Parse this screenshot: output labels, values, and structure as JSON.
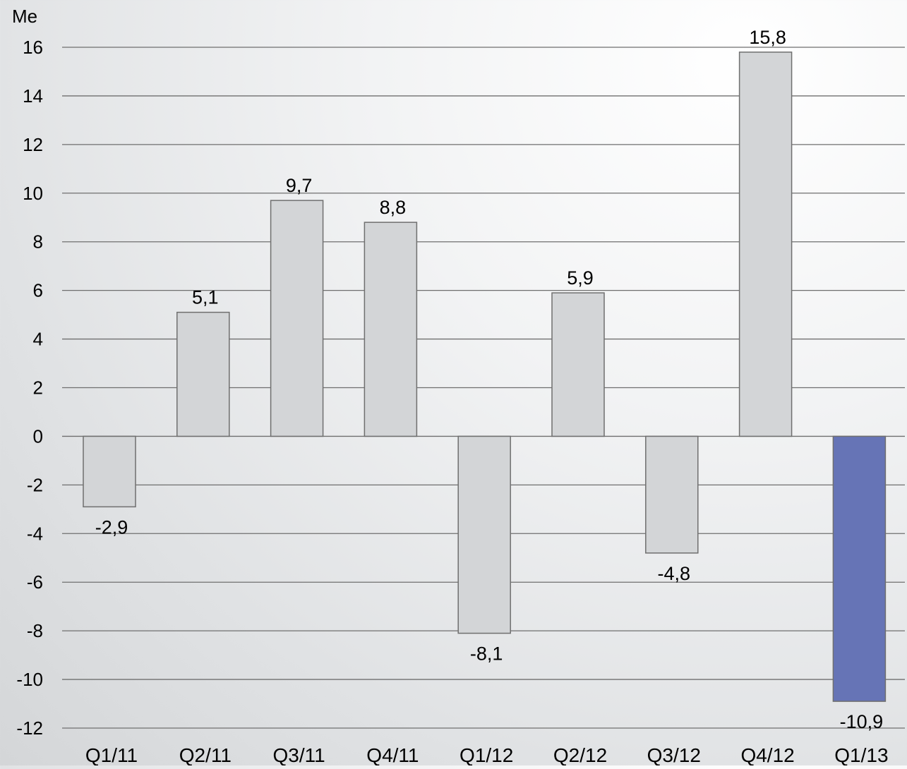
{
  "chart_data": {
    "type": "bar",
    "title": "",
    "unit_label": "Me",
    "xlabel": "",
    "ylabel": "Me",
    "categories": [
      "Q1/11",
      "Q2/11",
      "Q3/11",
      "Q4/11",
      "Q1/12",
      "Q2/12",
      "Q3/12",
      "Q4/12",
      "Q1/13"
    ],
    "values": [
      -2.9,
      5.1,
      9.7,
      8.8,
      -8.1,
      5.9,
      -4.8,
      15.8,
      -10.9
    ],
    "value_labels": [
      "-2,9",
      "5,1",
      "9,7",
      "8,8",
      "-8,1",
      "5,9",
      "-4,8",
      "15,8",
      "-10,9"
    ],
    "ylim": [
      -12,
      16
    ],
    "yticks": [
      16,
      14,
      12,
      10,
      8,
      6,
      4,
      2,
      0,
      -2,
      -4,
      -6,
      -8,
      -10,
      -12
    ],
    "ytick_labels": [
      "16",
      "14",
      "12",
      "10",
      "8",
      "6",
      "4",
      "2",
      "0",
      "-2",
      "-4",
      "-6",
      "-8",
      "-10",
      "-12"
    ],
    "grid": true,
    "legend": "none",
    "colors": {
      "default_bar": "#d3d5d7",
      "highlight_bar": "#6674b6",
      "bar_edge": "#6f6f6f",
      "gridline": "#6f6f6f"
    },
    "highlight_index": 8
  }
}
